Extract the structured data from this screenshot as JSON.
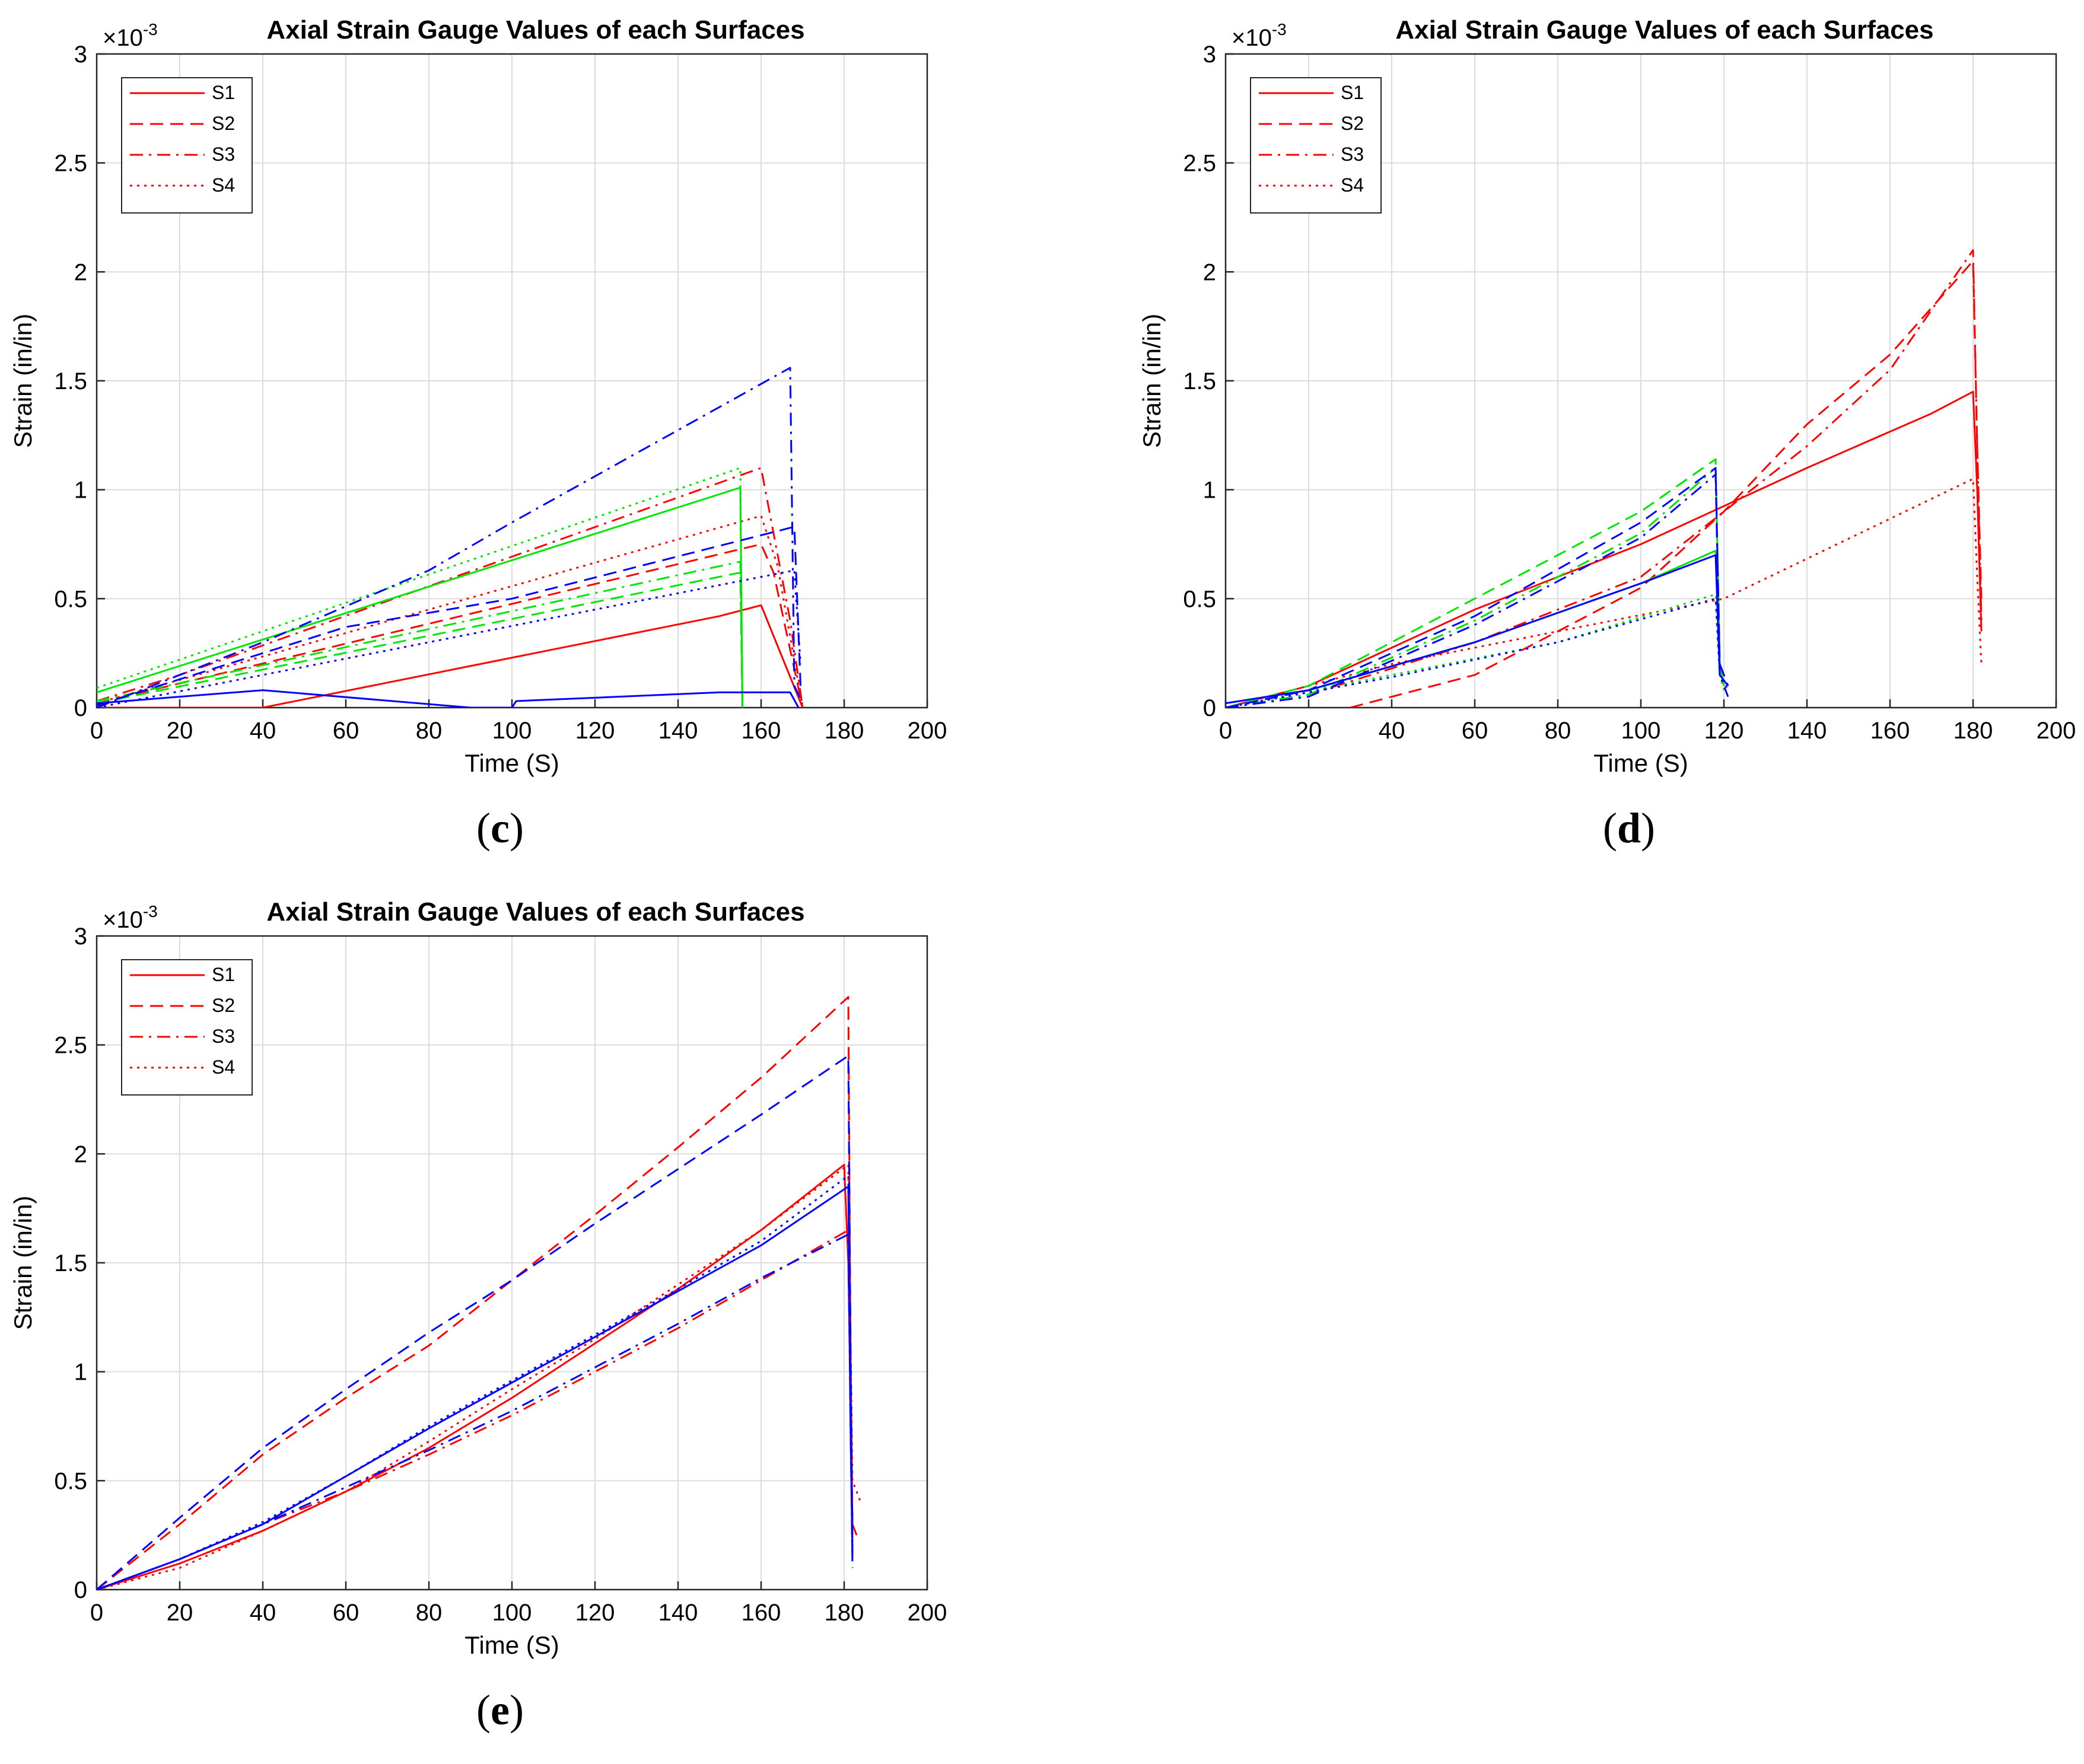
{
  "figure": {
    "panel_labels": [
      "(c)",
      "(d)",
      "(e)"
    ]
  },
  "colors": {
    "red": "#ff0000",
    "green": "#00e600",
    "blue": "#0000ff",
    "grid": "#dcdcdc",
    "axis": "#262626"
  },
  "chart_data": [
    {
      "id": "c",
      "type": "line",
      "title": "Axial Strain Gauge Values of each Surfaces",
      "xlabel": "Time (S)",
      "ylabel": "Strain (in/in)",
      "y_exponent_base": "×10",
      "y_exponent": "-3",
      "xlim": [
        0,
        200
      ],
      "ylim": [
        0,
        3
      ],
      "xticks": [
        "0",
        "20",
        "40",
        "60",
        "80",
        "100",
        "120",
        "140",
        "160",
        "180",
        "200"
      ],
      "yticks": [
        "0",
        "0.5",
        "1",
        "1.5",
        "2",
        "2.5",
        "3"
      ],
      "grid": true,
      "legend": {
        "position": "top-left",
        "entries": [
          "S1",
          "S2",
          "S3",
          "S4"
        ],
        "styles": [
          "solid",
          "dashed",
          "dashdot",
          "dotted"
        ]
      },
      "series": [
        {
          "name": "S1",
          "color": "red",
          "style": "solid",
          "x": [
            0,
            40,
            150,
            160,
            170
          ],
          "y": [
            0,
            0,
            0.42,
            0.47,
            0
          ]
        },
        {
          "name": "S2",
          "color": "red",
          "style": "dashed",
          "x": [
            0,
            160,
            163,
            170
          ],
          "y": [
            0.02,
            0.75,
            0.62,
            0
          ]
        },
        {
          "name": "S3",
          "color": "red",
          "style": "dashdot",
          "x": [
            0,
            20,
            160,
            167,
            170
          ],
          "y": [
            0.03,
            0.15,
            1.1,
            0.4,
            0
          ]
        },
        {
          "name": "S4",
          "color": "red",
          "style": "dotted",
          "x": [
            0,
            160,
            164,
            170
          ],
          "y": [
            0.02,
            0.88,
            0.65,
            0
          ]
        },
        {
          "name": "S1",
          "color": "green",
          "style": "solid",
          "x": [
            0,
            155,
            155.5
          ],
          "y": [
            0.07,
            1.01,
            0
          ]
        },
        {
          "name": "S2",
          "color": "green",
          "style": "dashed",
          "x": [
            0,
            155,
            155.5
          ],
          "y": [
            0.02,
            0.62,
            0
          ]
        },
        {
          "name": "S3",
          "color": "green",
          "style": "dashdot",
          "x": [
            0,
            155,
            155.5
          ],
          "y": [
            0.03,
            0.67,
            0
          ]
        },
        {
          "name": "S4",
          "color": "green",
          "style": "dotted",
          "x": [
            0,
            155,
            155.5
          ],
          "y": [
            0.09,
            1.1,
            0
          ]
        },
        {
          "name": "S1",
          "color": "blue",
          "style": "solid",
          "x": [
            0,
            40,
            90,
            100,
            101,
            150,
            167,
            169
          ],
          "y": [
            0.02,
            0.08,
            0,
            0,
            0.03,
            0.07,
            0.07,
            0
          ]
        },
        {
          "name": "S2",
          "color": "blue",
          "style": "dashed",
          "x": [
            0,
            60,
            100,
            168,
            169.5
          ],
          "y": [
            0.01,
            0.37,
            0.5,
            0.83,
            0.1
          ]
        },
        {
          "name": "S3",
          "color": "blue",
          "style": "dashdot",
          "x": [
            0,
            40,
            80,
            100,
            167,
            168,
            170
          ],
          "y": [
            0,
            0.3,
            0.63,
            0.85,
            1.56,
            0.1,
            0.02
          ]
        },
        {
          "name": "S4",
          "color": "blue",
          "style": "dotted",
          "x": [
            0,
            168,
            169.5
          ],
          "y": [
            0,
            0.63,
            0.2
          ]
        }
      ]
    },
    {
      "id": "d",
      "type": "line",
      "title": "Axial Strain Gauge Values of each Surfaces",
      "xlabel": "Time (S)",
      "ylabel": "Strain (in/in)",
      "y_exponent_base": "×10",
      "y_exponent": "-3",
      "xlim": [
        0,
        200
      ],
      "ylim": [
        0,
        3
      ],
      "xticks": [
        "0",
        "20",
        "40",
        "60",
        "80",
        "100",
        "120",
        "140",
        "160",
        "180",
        "200"
      ],
      "yticks": [
        "0",
        "0.5",
        "1",
        "1.5",
        "2",
        "2.5",
        "3"
      ],
      "grid": true,
      "legend": {
        "position": "top-left",
        "entries": [
          "S1",
          "S2",
          "S3",
          "S4"
        ],
        "styles": [
          "solid",
          "dashed",
          "dashdot",
          "dotted"
        ]
      },
      "series": [
        {
          "name": "S1",
          "color": "red",
          "style": "solid",
          "x": [
            0,
            20,
            60,
            100,
            140,
            170,
            180,
            181,
            182
          ],
          "y": [
            0,
            0.1,
            0.45,
            0.75,
            1.1,
            1.35,
            1.45,
            1.0,
            0.35
          ]
        },
        {
          "name": "S2",
          "color": "red",
          "style": "dashed",
          "x": [
            30,
            60,
            100,
            120,
            140,
            160,
            180,
            181,
            182
          ],
          "y": [
            0,
            0.15,
            0.55,
            0.9,
            1.3,
            1.62,
            2.05,
            1.2,
            0.5
          ]
        },
        {
          "name": "S3",
          "color": "red",
          "style": "dashdot",
          "x": [
            0,
            20,
            60,
            100,
            140,
            160,
            180,
            181,
            182
          ],
          "y": [
            0,
            0.06,
            0.3,
            0.6,
            1.2,
            1.55,
            2.1,
            1.2,
            0.4
          ]
        },
        {
          "name": "S4",
          "color": "red",
          "style": "dotted",
          "x": [
            0,
            40,
            120,
            180,
            181,
            182
          ],
          "y": [
            0,
            0.2,
            0.5,
            1.05,
            0.6,
            0.2
          ]
        },
        {
          "name": "S1",
          "color": "green",
          "style": "solid",
          "x": [
            0,
            20,
            60,
            100,
            118,
            119,
            120
          ],
          "y": [
            0.02,
            0.08,
            0.3,
            0.57,
            0.72,
            0.2,
            0.1
          ]
        },
        {
          "name": "S2",
          "color": "green",
          "style": "dashed",
          "x": [
            0,
            20,
            60,
            100,
            118,
            119,
            120
          ],
          "y": [
            0,
            0.1,
            0.5,
            0.9,
            1.14,
            0.2,
            0.1
          ]
        },
        {
          "name": "S3",
          "color": "green",
          "style": "dashdot",
          "x": [
            0,
            20,
            60,
            100,
            118,
            119,
            120
          ],
          "y": [
            0,
            0.06,
            0.4,
            0.8,
            1.1,
            0.2,
            0.1
          ]
        },
        {
          "name": "S4",
          "color": "green",
          "style": "dotted",
          "x": [
            0,
            40,
            80,
            118,
            119,
            120
          ],
          "y": [
            0,
            0.15,
            0.3,
            0.52,
            0.15,
            0.08
          ]
        },
        {
          "name": "S1",
          "color": "blue",
          "style": "solid",
          "x": [
            0,
            20,
            60,
            100,
            118,
            119,
            121
          ],
          "y": [
            0.02,
            0.08,
            0.3,
            0.57,
            0.7,
            0.15,
            0.1
          ]
        },
        {
          "name": "S2",
          "color": "blue",
          "style": "dashed",
          "x": [
            0,
            20,
            60,
            100,
            118,
            119,
            121
          ],
          "y": [
            0,
            0.08,
            0.42,
            0.85,
            1.1,
            0.2,
            0.1
          ]
        },
        {
          "name": "S3",
          "color": "blue",
          "style": "dashdot",
          "x": [
            0,
            20,
            60,
            100,
            118,
            119,
            121
          ],
          "y": [
            0,
            0.05,
            0.38,
            0.78,
            1.07,
            0.15,
            0.05
          ]
        },
        {
          "name": "S4",
          "color": "blue",
          "style": "dotted",
          "x": [
            0,
            40,
            80,
            118,
            119,
            121
          ],
          "y": [
            0,
            0.14,
            0.3,
            0.5,
            0.15,
            0.08
          ]
        }
      ]
    },
    {
      "id": "e",
      "type": "line",
      "title": "Axial Strain Gauge Values of each Surfaces",
      "xlabel": "Time (S)",
      "ylabel": "Strain (in/in)",
      "y_exponent_base": "×10",
      "y_exponent": "-3",
      "xlim": [
        0,
        200
      ],
      "ylim": [
        0,
        3
      ],
      "xticks": [
        "0",
        "20",
        "40",
        "60",
        "80",
        "100",
        "120",
        "140",
        "160",
        "180",
        "200"
      ],
      "yticks": [
        "0",
        "0.5",
        "1",
        "1.5",
        "2",
        "2.5",
        "3"
      ],
      "grid": true,
      "legend": {
        "position": "top-left",
        "entries": [
          "S1",
          "S2",
          "S3",
          "S4"
        ],
        "styles": [
          "solid",
          "dashed",
          "dashdot",
          "dotted"
        ]
      },
      "series": [
        {
          "name": "S1",
          "color": "red",
          "style": "solid",
          "x": [
            0,
            20,
            40,
            60,
            80,
            100,
            120,
            140,
            160,
            180,
            181,
            182,
            183
          ],
          "y": [
            0,
            0.12,
            0.27,
            0.45,
            0.65,
            0.88,
            1.13,
            1.38,
            1.65,
            1.95,
            1.5,
            0.3,
            0.25
          ]
        },
        {
          "name": "S2",
          "color": "red",
          "style": "dashed",
          "x": [
            0,
            20,
            40,
            60,
            80,
            100,
            120,
            140,
            160,
            181,
            181.5,
            182
          ],
          "y": [
            0,
            0.3,
            0.62,
            0.88,
            1.12,
            1.42,
            1.72,
            2.03,
            2.35,
            2.72,
            1.2,
            0.3
          ]
        },
        {
          "name": "S3",
          "color": "red",
          "style": "dashdot",
          "x": [
            0,
            20,
            40,
            60,
            80,
            100,
            120,
            140,
            160,
            181,
            181.5,
            182
          ],
          "y": [
            0,
            0.14,
            0.3,
            0.45,
            0.62,
            0.8,
            1.0,
            1.2,
            1.42,
            1.65,
            0.8,
            0.15
          ]
        },
        {
          "name": "S4",
          "color": "red",
          "style": "dotted",
          "x": [
            0,
            20,
            40,
            60,
            80,
            100,
            120,
            140,
            160,
            181,
            182,
            184
          ],
          "y": [
            0,
            0.1,
            0.27,
            0.45,
            0.68,
            0.92,
            1.15,
            1.4,
            1.65,
            1.95,
            0.5,
            0.4
          ]
        },
        {
          "name": "S1",
          "color": "blue",
          "style": "solid",
          "x": [
            0,
            20,
            40,
            60,
            80,
            100,
            120,
            140,
            160,
            181,
            181.5,
            182
          ],
          "y": [
            0,
            0.14,
            0.3,
            0.52,
            0.74,
            0.95,
            1.16,
            1.37,
            1.58,
            1.85,
            0.8,
            0.15
          ]
        },
        {
          "name": "S2",
          "color": "blue",
          "style": "dashed",
          "x": [
            0,
            20,
            40,
            60,
            80,
            100,
            120,
            140,
            160,
            181,
            181.5,
            182
          ],
          "y": [
            0,
            0.33,
            0.65,
            0.92,
            1.18,
            1.42,
            1.68,
            1.93,
            2.18,
            2.45,
            1.2,
            0.2
          ]
        },
        {
          "name": "S3",
          "color": "blue",
          "style": "dashdot",
          "x": [
            0,
            20,
            40,
            60,
            80,
            100,
            120,
            140,
            160,
            181,
            181.5,
            182
          ],
          "y": [
            0,
            0.14,
            0.3,
            0.47,
            0.64,
            0.82,
            1.02,
            1.22,
            1.43,
            1.63,
            0.8,
            0.1
          ]
        },
        {
          "name": "S4",
          "color": "blue",
          "style": "dotted",
          "x": [
            0,
            20,
            40,
            60,
            80,
            100,
            120,
            140,
            160,
            181,
            181.5,
            182
          ],
          "y": [
            0,
            0.14,
            0.31,
            0.52,
            0.75,
            0.96,
            1.17,
            1.38,
            1.6,
            1.9,
            0.9,
            0.2
          ]
        }
      ]
    }
  ]
}
